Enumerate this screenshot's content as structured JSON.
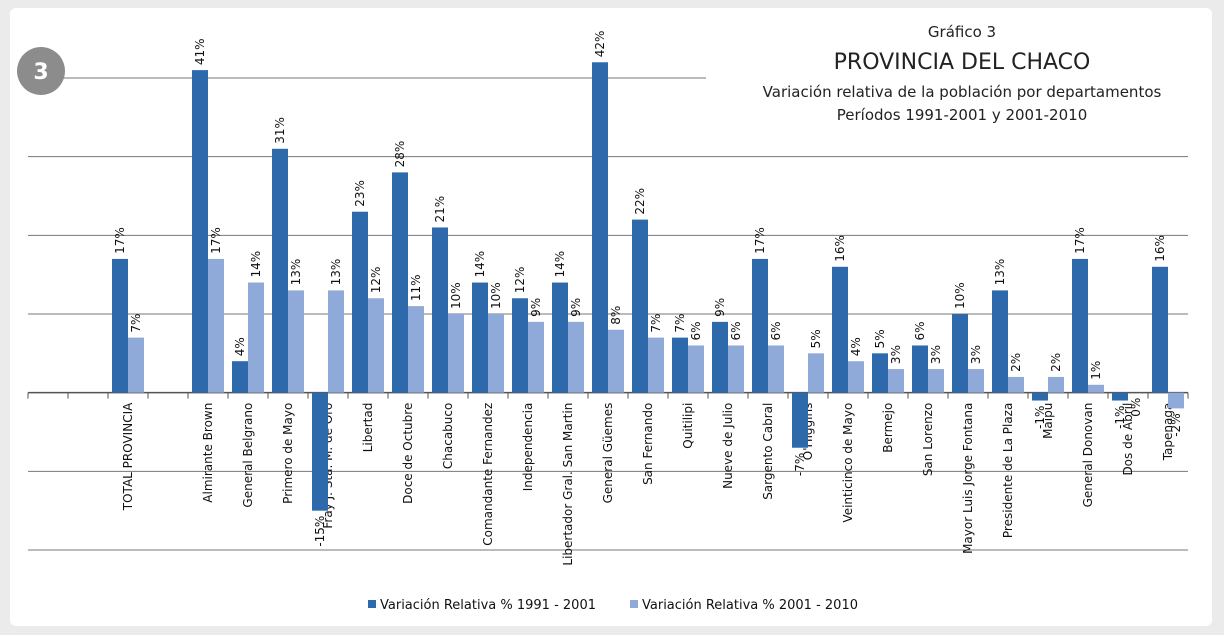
{
  "badge": "3",
  "chart_data": {
    "type": "bar",
    "label": "Gráfico 3",
    "title": "PROVINCIA DEL CHACO",
    "subtitle": [
      "Variación relativa de la población por departamentos",
      "Períodos 1991-2001 y 2001-2010"
    ],
    "categories": [
      null,
      null,
      "TOTAL PROVINCIA",
      null,
      "Almirante Brown",
      "General Belgrano",
      "Primero de Mayo",
      "Fray J. Sta. M. de Oro",
      "Libertad",
      "Doce de Octubre",
      "Chacabuco",
      "Comandante Fernandez",
      "Independencia",
      "Libertador Gral. San Martin",
      "General Güemes",
      "San Fernando",
      "Quitilipi",
      "Nueve de Julio",
      "Sargento Cabral",
      "O'Higgins",
      "Veinticinco de Mayo",
      "Bermejo",
      "San Lorenzo",
      "Mayor Luis Jorge Fontana",
      "Presidente de La Plaza",
      "Maipu",
      "General Donovan",
      "Dos de Abril",
      "Tapenaga"
    ],
    "series": [
      {
        "name": "Variación Relativa % 1991 - 2001",
        "color": "#2e69ac",
        "values": [
          null,
          null,
          17,
          null,
          41,
          4,
          31,
          -15,
          23,
          28,
          21,
          14,
          12,
          14,
          42,
          22,
          7,
          9,
          17,
          -7,
          16,
          5,
          6,
          10,
          13,
          -1,
          17,
          -1,
          16
        ],
        "value_labels": [
          null,
          null,
          "17%",
          null,
          "41%",
          "4%",
          "31%",
          "-15%",
          "23%",
          "28%",
          "21%",
          "14%",
          "12%",
          "14%",
          "42%",
          "22%",
          "7%",
          "9%",
          "17%",
          "-7%",
          "16%",
          "5%",
          "6%",
          "10%",
          "13%",
          "-1%",
          "17%",
          "-1%",
          "16%"
        ]
      },
      {
        "name": "Variación Relativa % 2001 - 2010",
        "color": "#8fa9d8",
        "values": [
          null,
          null,
          7,
          null,
          17,
          14,
          13,
          13,
          12,
          11,
          10,
          10,
          9,
          9,
          8,
          7,
          6,
          6,
          6,
          5,
          4,
          3,
          3,
          3,
          2,
          2,
          1,
          0,
          -2
        ],
        "value_labels": [
          null,
          null,
          "7%",
          null,
          "17%",
          "14%",
          "13%",
          "13%",
          "12%",
          "11%",
          "10%",
          "10%",
          "9%",
          "9%",
          "8%",
          "7%",
          "6%",
          "6%",
          "6%",
          "5%",
          "4%",
          "3%",
          "3%",
          "3%",
          "2%",
          "2%",
          "1%",
          "0%",
          "-2%"
        ]
      }
    ],
    "ylim": [
      -20,
      40
    ],
    "yticks": [
      -20,
      -10,
      0,
      10,
      20,
      30,
      40
    ],
    "grid": true,
    "legend": "bottom"
  }
}
